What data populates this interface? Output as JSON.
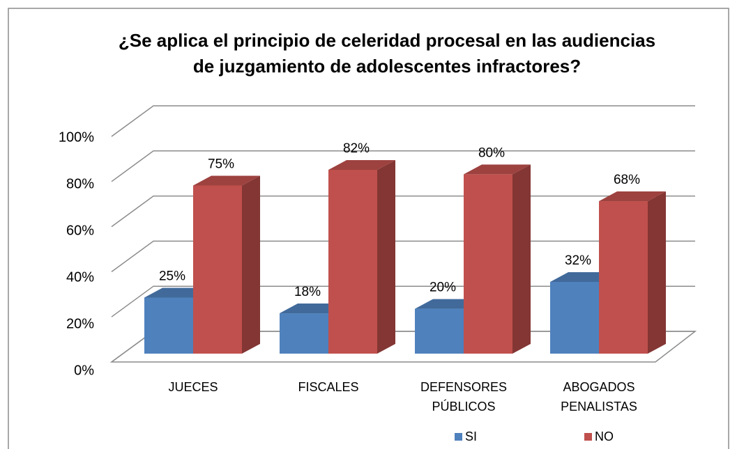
{
  "chart_data": {
    "type": "bar3d",
    "title": [
      "¿Se aplica el principio de celeridad procesal en las audiencias",
      "de juzgamiento de adolescentes infractores?"
    ],
    "categories": [
      "JUECES",
      "FISCALES",
      "DEFENSORES PÚBLICOS",
      "ABOGADOS PENALISTAS"
    ],
    "series": [
      {
        "name": "SI",
        "color": "#4f81bd",
        "values": [
          25,
          18,
          20,
          32
        ],
        "value_labels": [
          "25%",
          "18%",
          "20%",
          "32%"
        ]
      },
      {
        "name": "NO",
        "color": "#c0504d",
        "values": [
          75,
          82,
          80,
          68
        ],
        "value_labels": [
          "75%",
          "82%",
          "80%",
          "68%"
        ]
      }
    ],
    "ylim": [
      0,
      100
    ],
    "yticks": [
      {
        "value": 0,
        "label": "0%"
      },
      {
        "value": 20,
        "label": "20%"
      },
      {
        "value": 40,
        "label": "40%"
      },
      {
        "value": 60,
        "label": "60%"
      },
      {
        "value": 80,
        "label": "80%"
      },
      {
        "value": 100,
        "label": "100%"
      }
    ],
    "grid": true,
    "legend": "bottom"
  }
}
